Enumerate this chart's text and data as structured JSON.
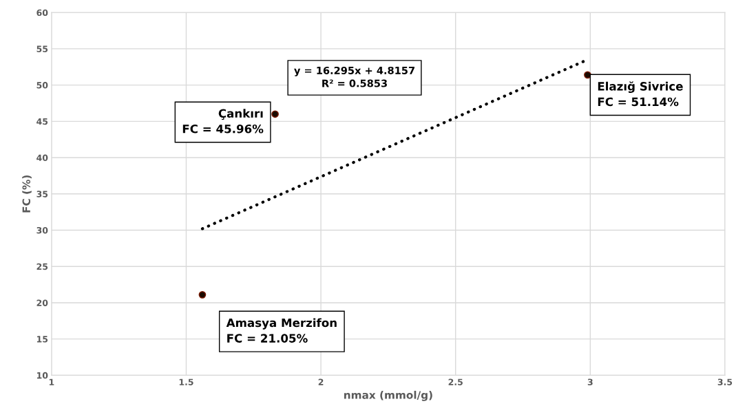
{
  "chart_data": {
    "type": "scatter",
    "xlabel": "nmax (mmol/g)",
    "ylabel": "FC (%)",
    "xlim": [
      1,
      3.5
    ],
    "xticks": [
      1,
      1.5,
      2,
      2.5,
      3,
      3.5
    ],
    "ylim": [
      10,
      60
    ],
    "yticks": [
      10,
      15,
      20,
      25,
      30,
      35,
      40,
      45,
      50,
      55,
      60
    ],
    "grid": true,
    "legend": false,
    "series": [
      {
        "color": "#1a0a00",
        "marker": "circle",
        "x": [
          1.56,
          1.83,
          2.99
        ],
        "values": [
          21.1,
          46.0,
          51.4
        ]
      },
      {
        "type": "line",
        "color": "#000000",
        "line_style": "dotted",
        "marker": "none",
        "x": [
          1.56,
          2.99
        ],
        "values": [
          30.2,
          53.5
        ]
      }
    ],
    "annotations": [
      {
        "text": "Amasya Merzifon\nFC = 21.05%",
        "x": 1.56,
        "y": 21.05
      },
      {
        "text": "Çankırı\nFC = 45.96%",
        "x": 1.83,
        "y": 45.96
      },
      {
        "text": "Elazığ Sivrice\nFC = 51.14%",
        "x": 2.99,
        "y": 51.4
      },
      "y = 16.295x + 4.8157\nR² = 0.5853"
    ]
  }
}
